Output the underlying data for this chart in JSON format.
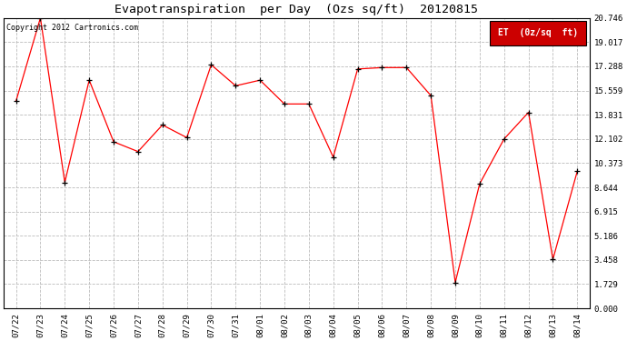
{
  "title": "Evapotranspiration  per Day  (Ozs sq/ft)  20120815",
  "copyright": "Copyright 2012 Cartronics.com",
  "legend_label": "ET  (0z/sq  ft)",
  "x_labels": [
    "07/22",
    "07/23",
    "07/24",
    "07/25",
    "07/26",
    "07/27",
    "07/28",
    "07/29",
    "07/30",
    "07/31",
    "08/01",
    "08/02",
    "08/03",
    "08/04",
    "08/05",
    "08/06",
    "08/07",
    "08/08",
    "08/09",
    "08/10",
    "08/11",
    "08/12",
    "08/13",
    "08/14"
  ],
  "y_values": [
    14.8,
    20.746,
    9.0,
    16.3,
    11.9,
    11.2,
    13.1,
    12.2,
    17.4,
    15.9,
    16.3,
    14.6,
    14.6,
    10.8,
    17.1,
    17.2,
    17.2,
    15.2,
    1.85,
    8.9,
    12.1,
    14.0,
    3.5,
    9.8
  ],
  "y_ticks": [
    0.0,
    1.729,
    3.458,
    5.186,
    6.915,
    8.644,
    10.373,
    12.102,
    13.831,
    15.559,
    17.288,
    19.017,
    20.746
  ],
  "y_lim": [
    0.0,
    20.746
  ],
  "line_color": "#ff0000",
  "marker": "+",
  "marker_color": "#000000",
  "background_color": "#ffffff",
  "grid_color": "#bbbbbb",
  "legend_bg": "#cc0000",
  "legend_text_color": "#ffffff",
  "title_fontsize": 9.5,
  "copyright_fontsize": 6,
  "tick_fontsize": 6.5,
  "legend_fontsize": 7
}
